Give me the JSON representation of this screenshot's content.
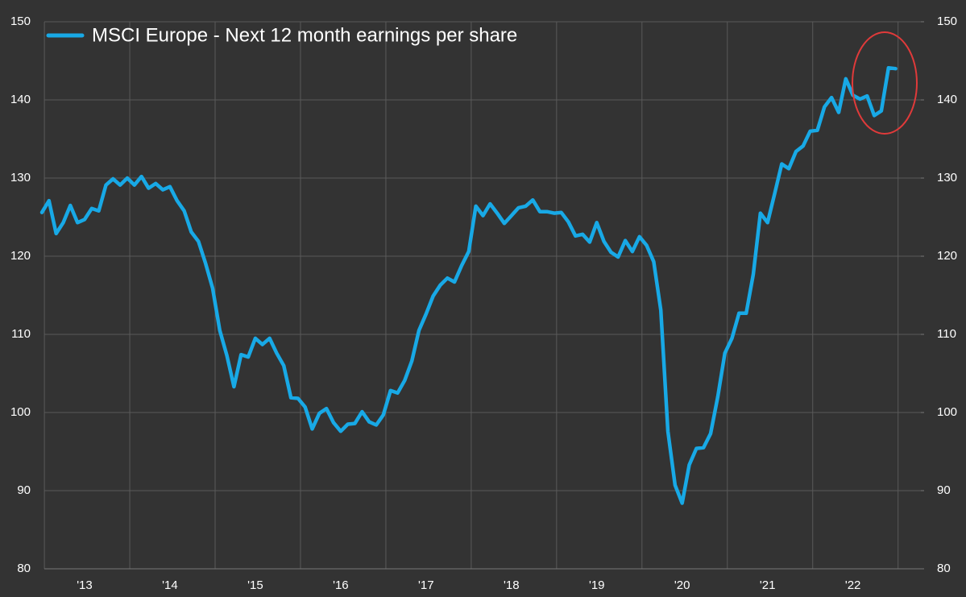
{
  "chart_data": {
    "type": "line",
    "categories": [
      null,
      null,
      null,
      null,
      null,
      null,
      "'13",
      null,
      null,
      null,
      null,
      null,
      null,
      null,
      null,
      null,
      null,
      null,
      "'14",
      null,
      null,
      null,
      null,
      null,
      null,
      null,
      null,
      null,
      null,
      null,
      "'15",
      null,
      null,
      null,
      null,
      null,
      null,
      null,
      null,
      null,
      null,
      null,
      "'16",
      null,
      null,
      null,
      null,
      null,
      null,
      null,
      null,
      null,
      null,
      null,
      "'17",
      null,
      null,
      null,
      null,
      null,
      null,
      null,
      null,
      null,
      null,
      null,
      "'18",
      null,
      null,
      null,
      null,
      null,
      null,
      null,
      null,
      null,
      null,
      null,
      "'19",
      null,
      null,
      null,
      null,
      null,
      null,
      null,
      null,
      null,
      null,
      null,
      "'20",
      null,
      null,
      null,
      null,
      null,
      null,
      null,
      null,
      null,
      null,
      null,
      "'21",
      null,
      null,
      null,
      null,
      null,
      null,
      null,
      null,
      null,
      null,
      null,
      "'22",
      null,
      null,
      null,
      null,
      null,
      null
    ],
    "series": [
      {
        "name": "MSCI Europe - Next 12 month earnings per share",
        "color": "#18a9e6",
        "values": [
          125.6,
          127.1,
          122.9,
          124.3,
          126.5,
          124.3,
          124.7,
          126.1,
          125.8,
          129.1,
          129.9,
          129.1,
          130.0,
          129.1,
          130.2,
          128.7,
          129.3,
          128.5,
          128.9,
          127.1,
          125.8,
          123.1,
          121.9,
          119.1,
          115.9,
          110.5,
          107.3,
          103.3,
          107.4,
          107.1,
          109.5,
          108.7,
          109.5,
          107.6,
          106.0,
          101.9,
          101.8,
          100.7,
          97.9,
          99.9,
          100.5,
          98.7,
          97.6,
          98.5,
          98.6,
          100.1,
          98.8,
          98.4,
          99.7,
          102.8,
          102.5,
          104.1,
          106.6,
          110.5,
          112.6,
          114.9,
          116.3,
          117.2,
          116.7,
          118.8,
          120.6,
          126.4,
          125.2,
          126.7,
          125.5,
          124.2,
          125.2,
          126.2,
          126.4,
          127.2,
          125.7,
          125.7,
          125.5,
          125.6,
          124.4,
          122.6,
          122.8,
          121.8,
          124.3,
          121.9,
          120.5,
          119.9,
          122.0,
          120.6,
          122.5,
          121.4,
          119.3,
          113.1,
          97.6,
          90.7,
          88.4,
          93.3,
          95.4,
          95.5,
          97.3,
          102.0,
          107.6,
          109.5,
          112.7,
          112.7,
          117.7,
          125.5,
          124.3,
          128.0,
          131.8,
          131.2,
          133.4,
          134.1,
          136.0,
          136.1,
          139.1,
          140.3,
          138.4,
          142.7,
          140.6,
          140.1,
          140.5,
          138.0,
          138.6,
          144.1,
          144.0
        ]
      }
    ],
    "ylim": [
      80,
      150
    ],
    "yticks": [
      80,
      90,
      100,
      110,
      120,
      130,
      140,
      150
    ],
    "y2lim": [
      80,
      150
    ],
    "y2ticks": [
      80,
      90,
      100,
      110,
      120,
      130,
      140,
      150
    ],
    "grid": true,
    "legend": "top-left"
  }
}
